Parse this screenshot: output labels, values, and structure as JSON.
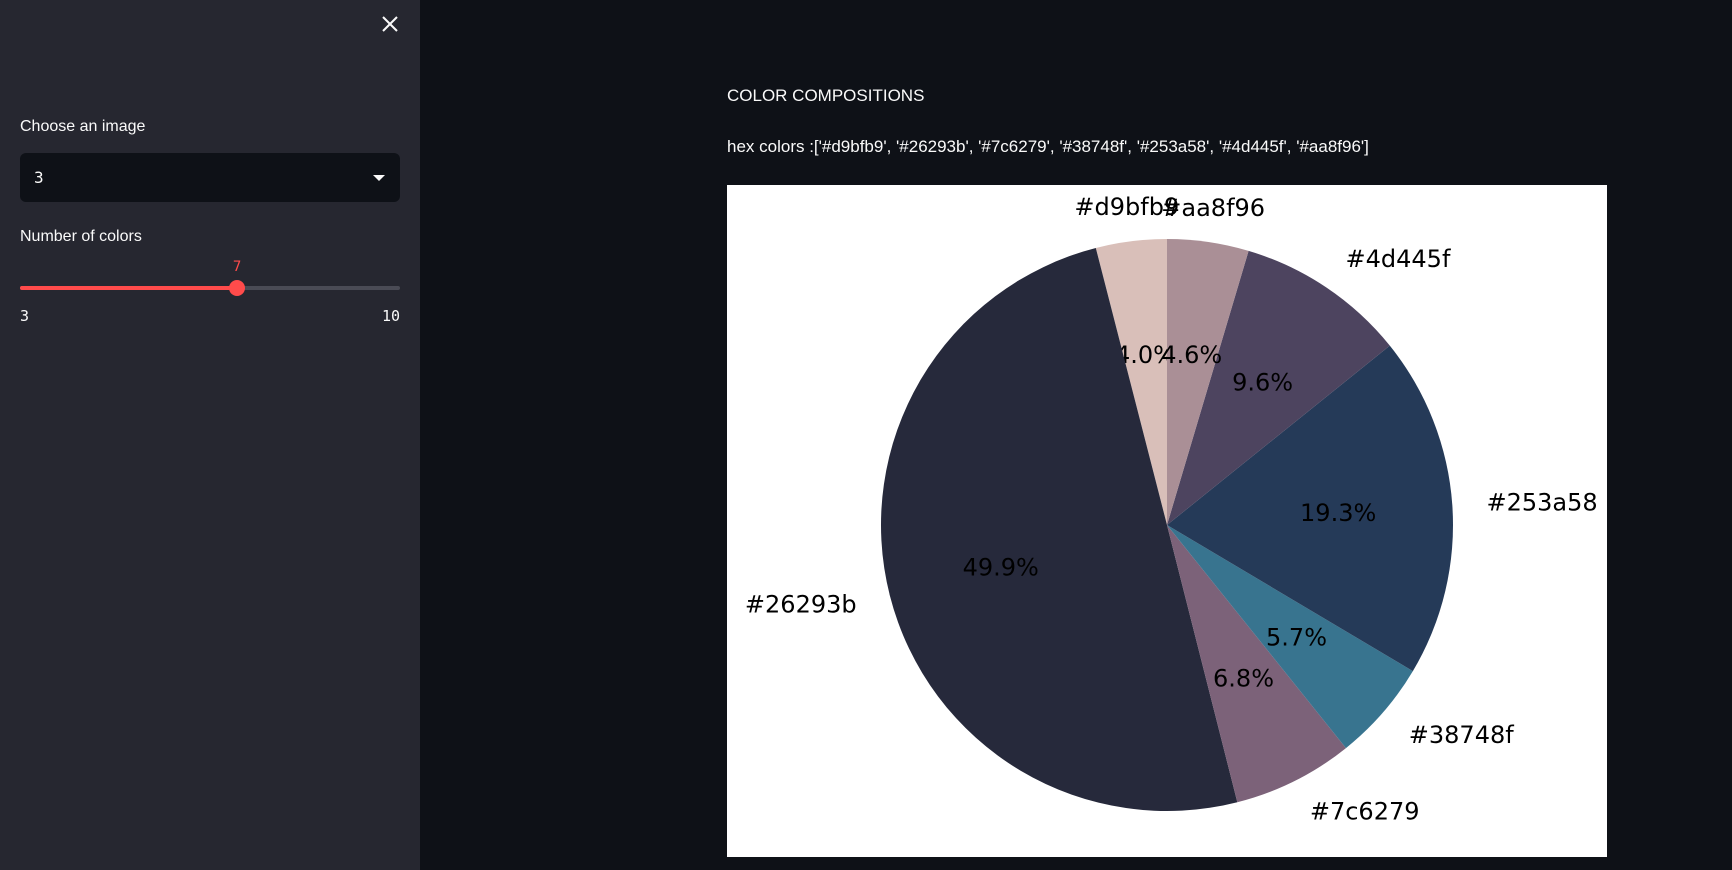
{
  "sidebar": {
    "close_icon": "close-icon",
    "image_select": {
      "label": "Choose an image",
      "value": "3"
    },
    "colors_slider": {
      "label": "Number of colors",
      "value": 7,
      "min": 3,
      "max": 10,
      "min_label": "3",
      "max_label": "10",
      "value_label": "7"
    },
    "accent_color": "#ff4b4b"
  },
  "main": {
    "heading": "COLOR COMPOSITIONS",
    "hex_text": "hex colors :['#d9bfb9', '#26293b', '#7c6279', '#38748f', '#253a58', '#4d445f', '#aa8f96']"
  },
  "chart_data": {
    "type": "pie",
    "start_angle_deg": 90,
    "direction": "counterclockwise",
    "slices": [
      {
        "label": "#d9bfb9",
        "value": 4.0,
        "pct_label": "4.0%",
        "color": "#d9bfb9"
      },
      {
        "label": "#26293b",
        "value": 49.9,
        "pct_label": "49.9%",
        "color": "#26293b"
      },
      {
        "label": "#7c6279",
        "value": 6.8,
        "pct_label": "6.8%",
        "color": "#7c6279"
      },
      {
        "label": "#38748f",
        "value": 5.7,
        "pct_label": "5.7%",
        "color": "#38748f"
      },
      {
        "label": "#253a58",
        "value": 19.3,
        "pct_label": "19.3%",
        "color": "#253a58"
      },
      {
        "label": "#4d445f",
        "value": 9.6,
        "pct_label": "9.6%",
        "color": "#4d445f"
      },
      {
        "label": "#aa8f96",
        "value": 4.6,
        "pct_label": "4.6%",
        "color": "#aa8f96"
      }
    ]
  }
}
